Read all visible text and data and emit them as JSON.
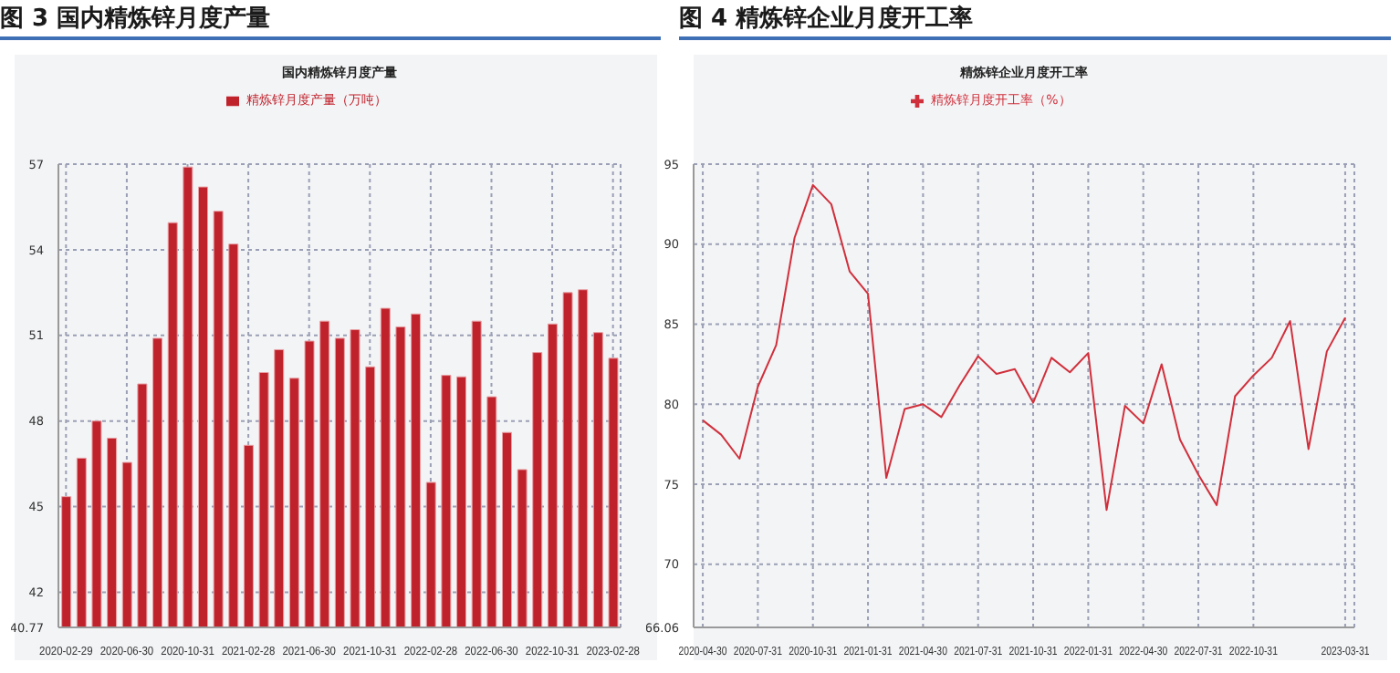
{
  "chart_data": [
    {
      "type": "bar",
      "title": "图 3  国内精炼锌月度产量",
      "subtitle": "国内精炼锌月度产量",
      "categories": [
        "2020-02-29",
        null,
        null,
        null,
        "2020-06-30",
        null,
        null,
        null,
        "2020-10-31",
        null,
        null,
        null,
        "2021-02-28",
        null,
        null,
        null,
        "2021-06-30",
        null,
        null,
        null,
        "2021-10-31",
        null,
        null,
        null,
        "2022-02-28",
        null,
        null,
        null,
        "2022-06-30",
        null,
        null,
        null,
        "2022-10-31",
        null,
        null,
        null,
        "2023-02-28"
      ],
      "series": [
        {
          "name": "精炼锌月度产量（万吨）",
          "color": "#c0222c",
          "values": [
            45.35,
            46.7,
            48.0,
            47.4,
            46.55,
            49.3,
            50.9,
            54.95,
            56.9,
            56.2,
            55.35,
            54.2,
            47.15,
            49.7,
            50.5,
            49.5,
            50.8,
            51.5,
            50.9,
            51.2,
            49.9,
            51.95,
            51.3,
            51.75,
            45.85,
            49.6,
            49.55,
            51.5,
            48.85,
            47.6,
            46.3,
            50.4,
            51.4,
            52.5,
            52.6,
            51.1,
            50.2
          ]
        }
      ],
      "ylim": [
        40.77,
        57
      ],
      "yticks": [
        40.77,
        42,
        45,
        48,
        51,
        54,
        57
      ],
      "grid": true,
      "legend": "top"
    },
    {
      "type": "line",
      "title": "图 4 精炼锌企业月度开工率",
      "subtitle": "精炼锌企业月度开工率",
      "categories": [
        "2020-04-30",
        null,
        null,
        "2020-07-31",
        null,
        null,
        "2020-10-31",
        null,
        null,
        "2021-01-31",
        null,
        null,
        "2021-04-30",
        null,
        null,
        "2021-07-31",
        null,
        null,
        "2021-10-31",
        null,
        null,
        "2022-01-31",
        null,
        null,
        "2022-04-30",
        null,
        null,
        "2022-07-31",
        null,
        null,
        "2022-10-31",
        null,
        null,
        null,
        null,
        "2023-03-31"
      ],
      "series": [
        {
          "name": "精炼锌月度开工率（%）",
          "color": "#d0303c",
          "values": [
            79.0,
            78.1,
            76.6,
            81.1,
            83.7,
            90.4,
            93.7,
            92.5,
            88.3,
            86.9,
            75.4,
            79.7,
            80.0,
            79.2,
            81.2,
            83.0,
            81.9,
            82.2,
            80.1,
            82.9,
            82.0,
            83.2,
            73.4,
            79.9,
            78.8,
            82.5,
            77.8,
            75.6,
            73.7,
            80.5,
            81.8,
            82.9,
            85.2,
            77.2,
            83.3,
            85.4
          ]
        }
      ],
      "ylim": [
        66.06,
        95
      ],
      "yticks": [
        66.06,
        70,
        75,
        80,
        85,
        90,
        95
      ],
      "grid": true,
      "legend": "top",
      "marker": "none",
      "line_style": "solid"
    }
  ]
}
